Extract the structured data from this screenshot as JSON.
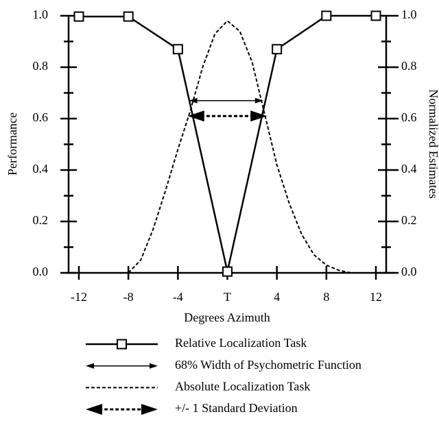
{
  "chart_data": {
    "type": "line",
    "xlabel": "Degrees Azimuth",
    "ylabel": "Performance",
    "y2label": "Normalized Estimates",
    "xlim": [
      -13,
      13.5
    ],
    "xticks": [
      -12,
      -8,
      -4,
      {
        "value": 0,
        "label": "T"
      },
      4,
      8,
      12
    ],
    "ylim": [
      0,
      1
    ],
    "yticks": [
      {
        "value": 0,
        "label": "0.0"
      },
      0.2,
      0.4,
      0.6,
      0.8,
      {
        "value": 1,
        "label": "1.0"
      }
    ],
    "yminorticks": [
      0.1,
      0.3,
      0.5,
      0.7,
      0.9
    ],
    "y2lim": [
      0,
      1
    ],
    "y2ticks": [
      {
        "value": 0,
        "label": "0.0"
      },
      0.2,
      0.4,
      0.6,
      0.8,
      {
        "value": 1,
        "label": "1.0"
      }
    ],
    "series": [
      {
        "name": "Relative Localization Task",
        "color": "#000000",
        "style": "solid",
        "marker": "square",
        "x": [
          -12,
          -8,
          -4,
          0,
          4,
          8,
          12
        ],
        "values": [
          0.997,
          0.997,
          0.87,
          0.005,
          0.87,
          1.0,
          1.0
        ]
      },
      {
        "name": "Absolute Localization Task",
        "color": "#000000",
        "style": "dashed",
        "marker": "none",
        "axis": "y2",
        "x": [
          -8,
          -7,
          -6,
          -5,
          -4,
          -3,
          -2,
          -1,
          0,
          1,
          2,
          3,
          4,
          5,
          6,
          7,
          8,
          9,
          10
        ],
        "values": [
          0,
          0.05,
          0.17,
          0.32,
          0.48,
          0.63,
          0.8,
          0.93,
          0.98,
          0.94,
          0.82,
          0.62,
          0.42,
          0.27,
          0.15,
          0.07,
          0.03,
          0.01,
          0
        ]
      }
    ],
    "annotations": [
      {
        "label": "68% Width of Psychometric Function",
        "style": "solid",
        "x1": -3.1,
        "x2": 2.9,
        "y": 0.67
      },
      {
        "label": "+/- 1 Standard Deviation",
        "style": "dashed",
        "x1": -3.2,
        "x2": 3.2,
        "y": 0.61
      }
    ]
  }
}
